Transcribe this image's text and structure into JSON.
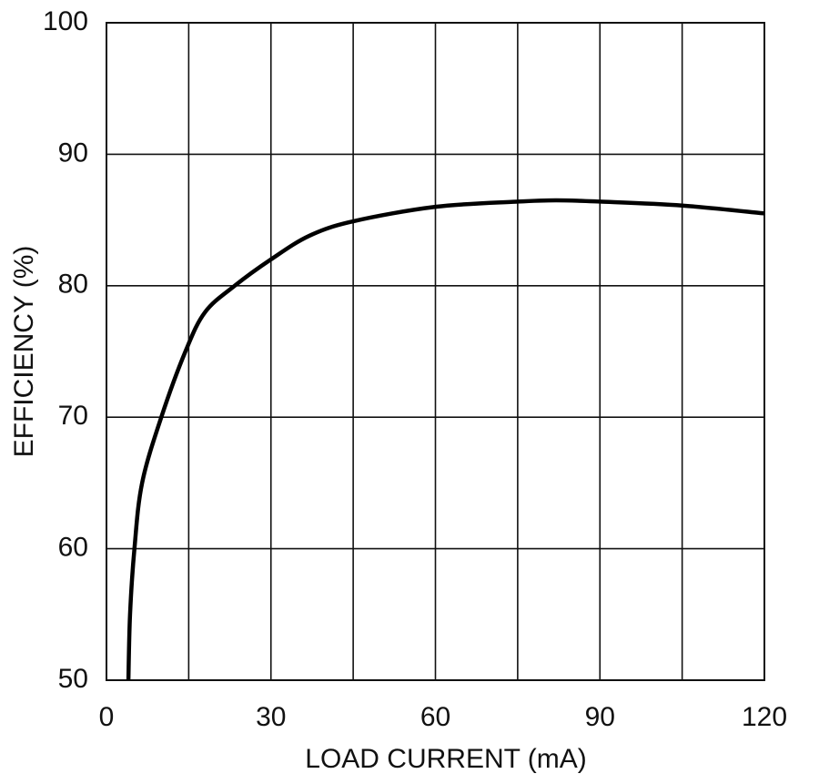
{
  "chart_data": {
    "type": "line",
    "xlabel": "LOAD CURRENT (mA)",
    "ylabel": "EFFICIENCY (%)",
    "xlim": [
      0,
      120
    ],
    "ylim": [
      50,
      100
    ],
    "xticks": [
      0,
      30,
      60,
      90,
      120
    ],
    "xminorticks": [
      15,
      45,
      75,
      105
    ],
    "yticks": [
      50,
      60,
      70,
      80,
      90,
      100
    ],
    "grid": true,
    "series": [
      {
        "color": "#000000",
        "x": [
          4,
          4.3,
          5.1,
          6.5,
          10,
          14.4,
          18,
          23.4,
          30,
          37,
          45,
          60,
          75,
          82,
          90,
          105,
          120
        ],
        "values": [
          50,
          55,
          60,
          65,
          70,
          75,
          78,
          80,
          82,
          83.8,
          84.9,
          86,
          86.4,
          86.5,
          86.4,
          86.1,
          85.5
        ]
      }
    ]
  }
}
